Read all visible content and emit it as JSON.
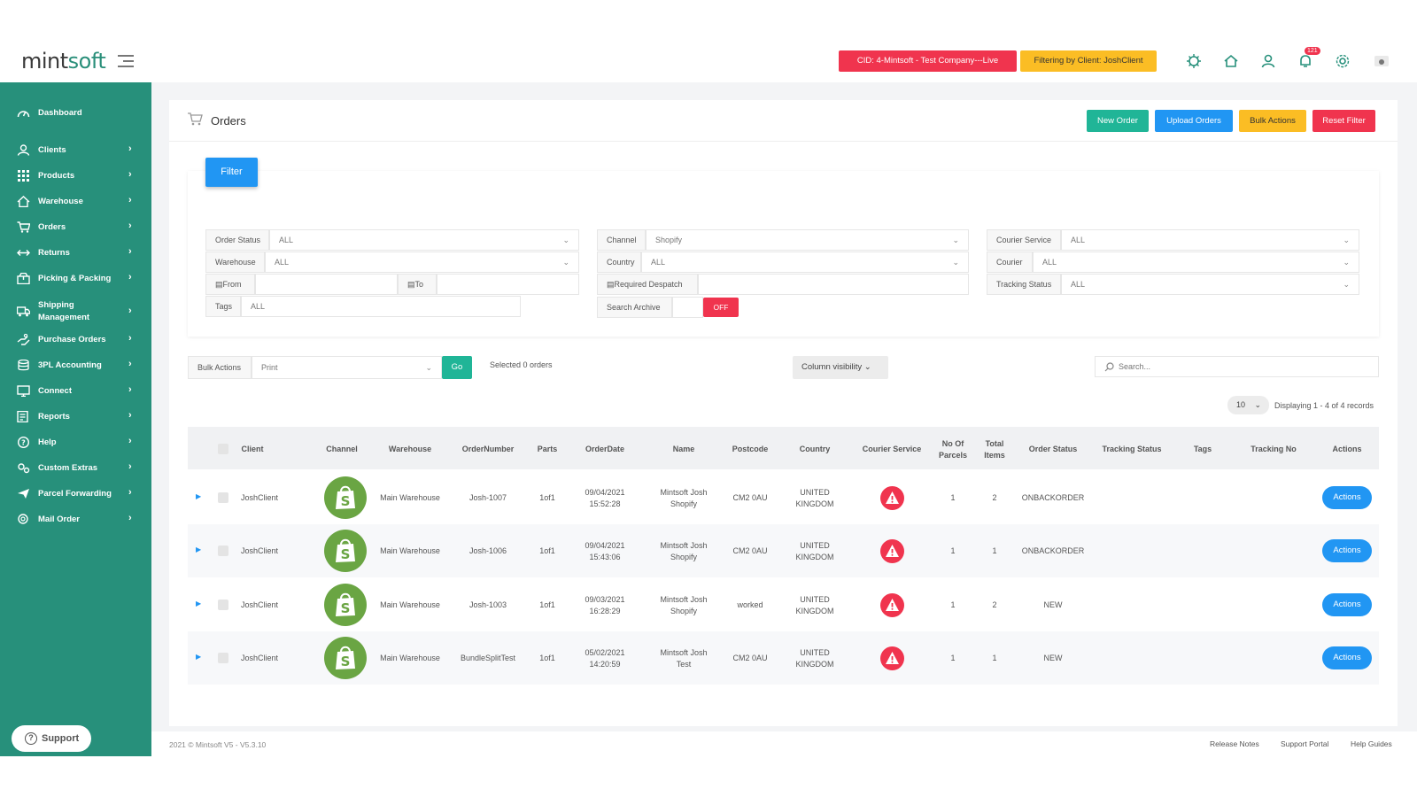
{
  "app": {
    "logo_main": "mint",
    "logo_accent": "soft"
  },
  "header": {
    "cid_badge": "CID: 4-Mintsoft - Test Company---Live",
    "client_badge": "Filtering by Client: JoshClient",
    "notifications_count": "121"
  },
  "sidebar": {
    "items": [
      {
        "label": "Dashboard",
        "icon": "dashboard-icon"
      },
      {
        "label": "Clients",
        "icon": "clients-icon"
      },
      {
        "label": "Products",
        "icon": "grid-icon"
      },
      {
        "label": "Warehouse",
        "icon": "home-icon"
      },
      {
        "label": "Orders",
        "icon": "cart-icon"
      },
      {
        "label": "Returns",
        "icon": "arrows-icon"
      },
      {
        "label": "Picking & Packing",
        "icon": "package-icon"
      },
      {
        "label_1": "Shipping",
        "label_2": "Management",
        "icon": "truck-icon"
      },
      {
        "label": "Purchase Orders",
        "icon": "hand-icon"
      },
      {
        "label": "3PL Accounting",
        "icon": "coins-icon"
      },
      {
        "label": "Connect",
        "icon": "connect-icon"
      },
      {
        "label": "Reports",
        "icon": "reports-icon"
      },
      {
        "label": "Help",
        "icon": "help-icon"
      },
      {
        "label": "Custom Extras",
        "icon": "extras-icon"
      },
      {
        "label": "Parcel Forwarding",
        "icon": "plane-icon"
      },
      {
        "label": "Mail Order",
        "icon": "mail-order-icon"
      }
    ],
    "support_label": "Support"
  },
  "page": {
    "title": "Orders",
    "buttons": {
      "new_order": "New Order",
      "upload_orders": "Upload Orders",
      "bulk_actions": "Bulk Actions",
      "reset_filter": "Reset Filter"
    },
    "filter_button": "Filter"
  },
  "filters": {
    "order_status": {
      "label": "Order Status",
      "value": "ALL"
    },
    "warehouse": {
      "label": "Warehouse",
      "value": "ALL"
    },
    "from": {
      "label": "From",
      "value": ""
    },
    "to": {
      "label": "To",
      "value": ""
    },
    "tags": {
      "label": "Tags",
      "value": "ALL"
    },
    "channel": {
      "label": "Channel",
      "value": "Shopify"
    },
    "country": {
      "label": "Country",
      "value": "ALL"
    },
    "required_despatch": {
      "label": "Required Despatch",
      "value": ""
    },
    "search_archive": {
      "label": "Search Archive",
      "toggle": "OFF"
    },
    "courier_service": {
      "label": "Courier Service",
      "value": "ALL"
    },
    "courier": {
      "label": "Courier",
      "value": "ALL"
    },
    "tracking_status": {
      "label": "Tracking Status",
      "value": "ALL"
    }
  },
  "toolbar": {
    "bulk_label": "Bulk Actions",
    "bulk_value": "Print",
    "go": "Go",
    "selected": "Selected 0 orders",
    "column_visibility": "Column visibility",
    "search_placeholder": "Search...",
    "page_size": "10",
    "displaying": "Displaying 1 - 4 of 4 records"
  },
  "table": {
    "headers": {
      "client": "Client",
      "channel": "Channel",
      "warehouse": "Warehouse",
      "order_number": "OrderNumber",
      "parts": "Parts",
      "order_date": "OrderDate",
      "name": "Name",
      "postcode": "Postcode",
      "country": "Country",
      "courier_service": "Courier Service",
      "parcels_1": "No Of",
      "parcels_2": "Parcels",
      "items_1": "Total",
      "items_2": "Items",
      "order_status": "Order Status",
      "tracking_status": "Tracking Status",
      "tags": "Tags",
      "tracking_no": "Tracking No",
      "actions": "Actions"
    },
    "rows": [
      {
        "client": "JoshClient",
        "warehouse": "Main Warehouse",
        "order_number": "Josh-1007",
        "parts": "1of1",
        "date": "09/04/2021",
        "time": "15:52:28",
        "name_1": "Mintsoft Josh",
        "name_2": "Shopify",
        "postcode": "CM2 0AU",
        "country_1": "UNITED",
        "country_2": "KINGDOM",
        "parcels": "1",
        "items": "2",
        "status": "ONBACKORDER",
        "tracking_status": "",
        "tags": "",
        "tracking_no": "",
        "action": "Actions"
      },
      {
        "client": "JoshClient",
        "warehouse": "Main Warehouse",
        "order_number": "Josh-1006",
        "parts": "1of1",
        "date": "09/04/2021",
        "time": "15:43:06",
        "name_1": "Mintsoft Josh",
        "name_2": "Shopify",
        "postcode": "CM2 0AU",
        "country_1": "UNITED",
        "country_2": "KINGDOM",
        "parcels": "1",
        "items": "1",
        "status": "ONBACKORDER",
        "tracking_status": "",
        "tags": "",
        "tracking_no": "",
        "action": "Actions"
      },
      {
        "client": "JoshClient",
        "warehouse": "Main Warehouse",
        "order_number": "Josh-1003",
        "parts": "1of1",
        "date": "09/03/2021",
        "time": "16:28:29",
        "name_1": "Mintsoft Josh",
        "name_2": "Shopify",
        "postcode": "worked",
        "country_1": "UNITED",
        "country_2": "KINGDOM",
        "parcels": "1",
        "items": "2",
        "status": "NEW",
        "tracking_status": "",
        "tags": "",
        "tracking_no": "",
        "action": "Actions"
      },
      {
        "client": "JoshClient",
        "warehouse": "Main Warehouse",
        "order_number": "BundleSplitTest",
        "parts": "1of1",
        "date": "05/02/2021",
        "time": "14:20:59",
        "name_1": "Mintsoft Josh",
        "name_2": "Test",
        "postcode": "CM2 0AU",
        "country_1": "UNITED",
        "country_2": "KINGDOM",
        "parcels": "1",
        "items": "1",
        "status": "NEW",
        "tracking_status": "",
        "tags": "",
        "tracking_no": "",
        "action": "Actions"
      }
    ]
  },
  "footer": {
    "copyright": "2021 © Mintsoft V5 - V5.3.10",
    "release_notes": "Release Notes",
    "support_portal": "Support Portal",
    "help_guides": "Help Guides"
  }
}
